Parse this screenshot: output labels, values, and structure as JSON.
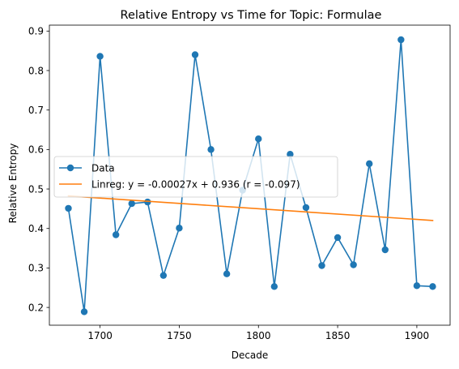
{
  "chart_data": {
    "type": "line",
    "title": "Relative Entropy vs Time for Topic: Formulae",
    "xlabel": "Decade",
    "ylabel": "Relative Entropy",
    "xlim": [
      1668,
      1921
    ],
    "ylim": [
      0.155,
      0.915
    ],
    "x_ticks": [
      1700,
      1750,
      1800,
      1850,
      1900
    ],
    "x_tick_labels": [
      "1700",
      "1750",
      "1800",
      "1850",
      "1900"
    ],
    "y_ticks": [
      0.2,
      0.3,
      0.4,
      0.5,
      0.6,
      0.7,
      0.8,
      0.9
    ],
    "y_tick_labels": [
      "0.2",
      "0.3",
      "0.4",
      "0.5",
      "0.6",
      "0.7",
      "0.8",
      "0.9"
    ],
    "grid": false,
    "legend_position": "center-left",
    "series": [
      {
        "name": "Data",
        "color": "#1f77b4",
        "marker": "circle",
        "x": [
          1680,
          1690,
          1700,
          1710,
          1720,
          1730,
          1740,
          1750,
          1760,
          1770,
          1780,
          1790,
          1800,
          1810,
          1820,
          1830,
          1840,
          1850,
          1860,
          1870,
          1880,
          1890,
          1900,
          1910
        ],
        "y": [
          0.451,
          0.189,
          0.836,
          0.384,
          0.463,
          0.467,
          0.281,
          0.401,
          0.84,
          0.6,
          0.285,
          0.497,
          0.627,
          0.253,
          0.588,
          0.453,
          0.306,
          0.377,
          0.308,
          0.564,
          0.346,
          0.878,
          0.255,
          0.253
        ]
      },
      {
        "name": "Linreg: y = -0.00027x + 0.936 (r = -0.097)",
        "color": "#ff7f0e",
        "marker": "none",
        "x": [
          1680,
          1910
        ],
        "y": [
          0.4824,
          0.4203
        ]
      }
    ]
  }
}
